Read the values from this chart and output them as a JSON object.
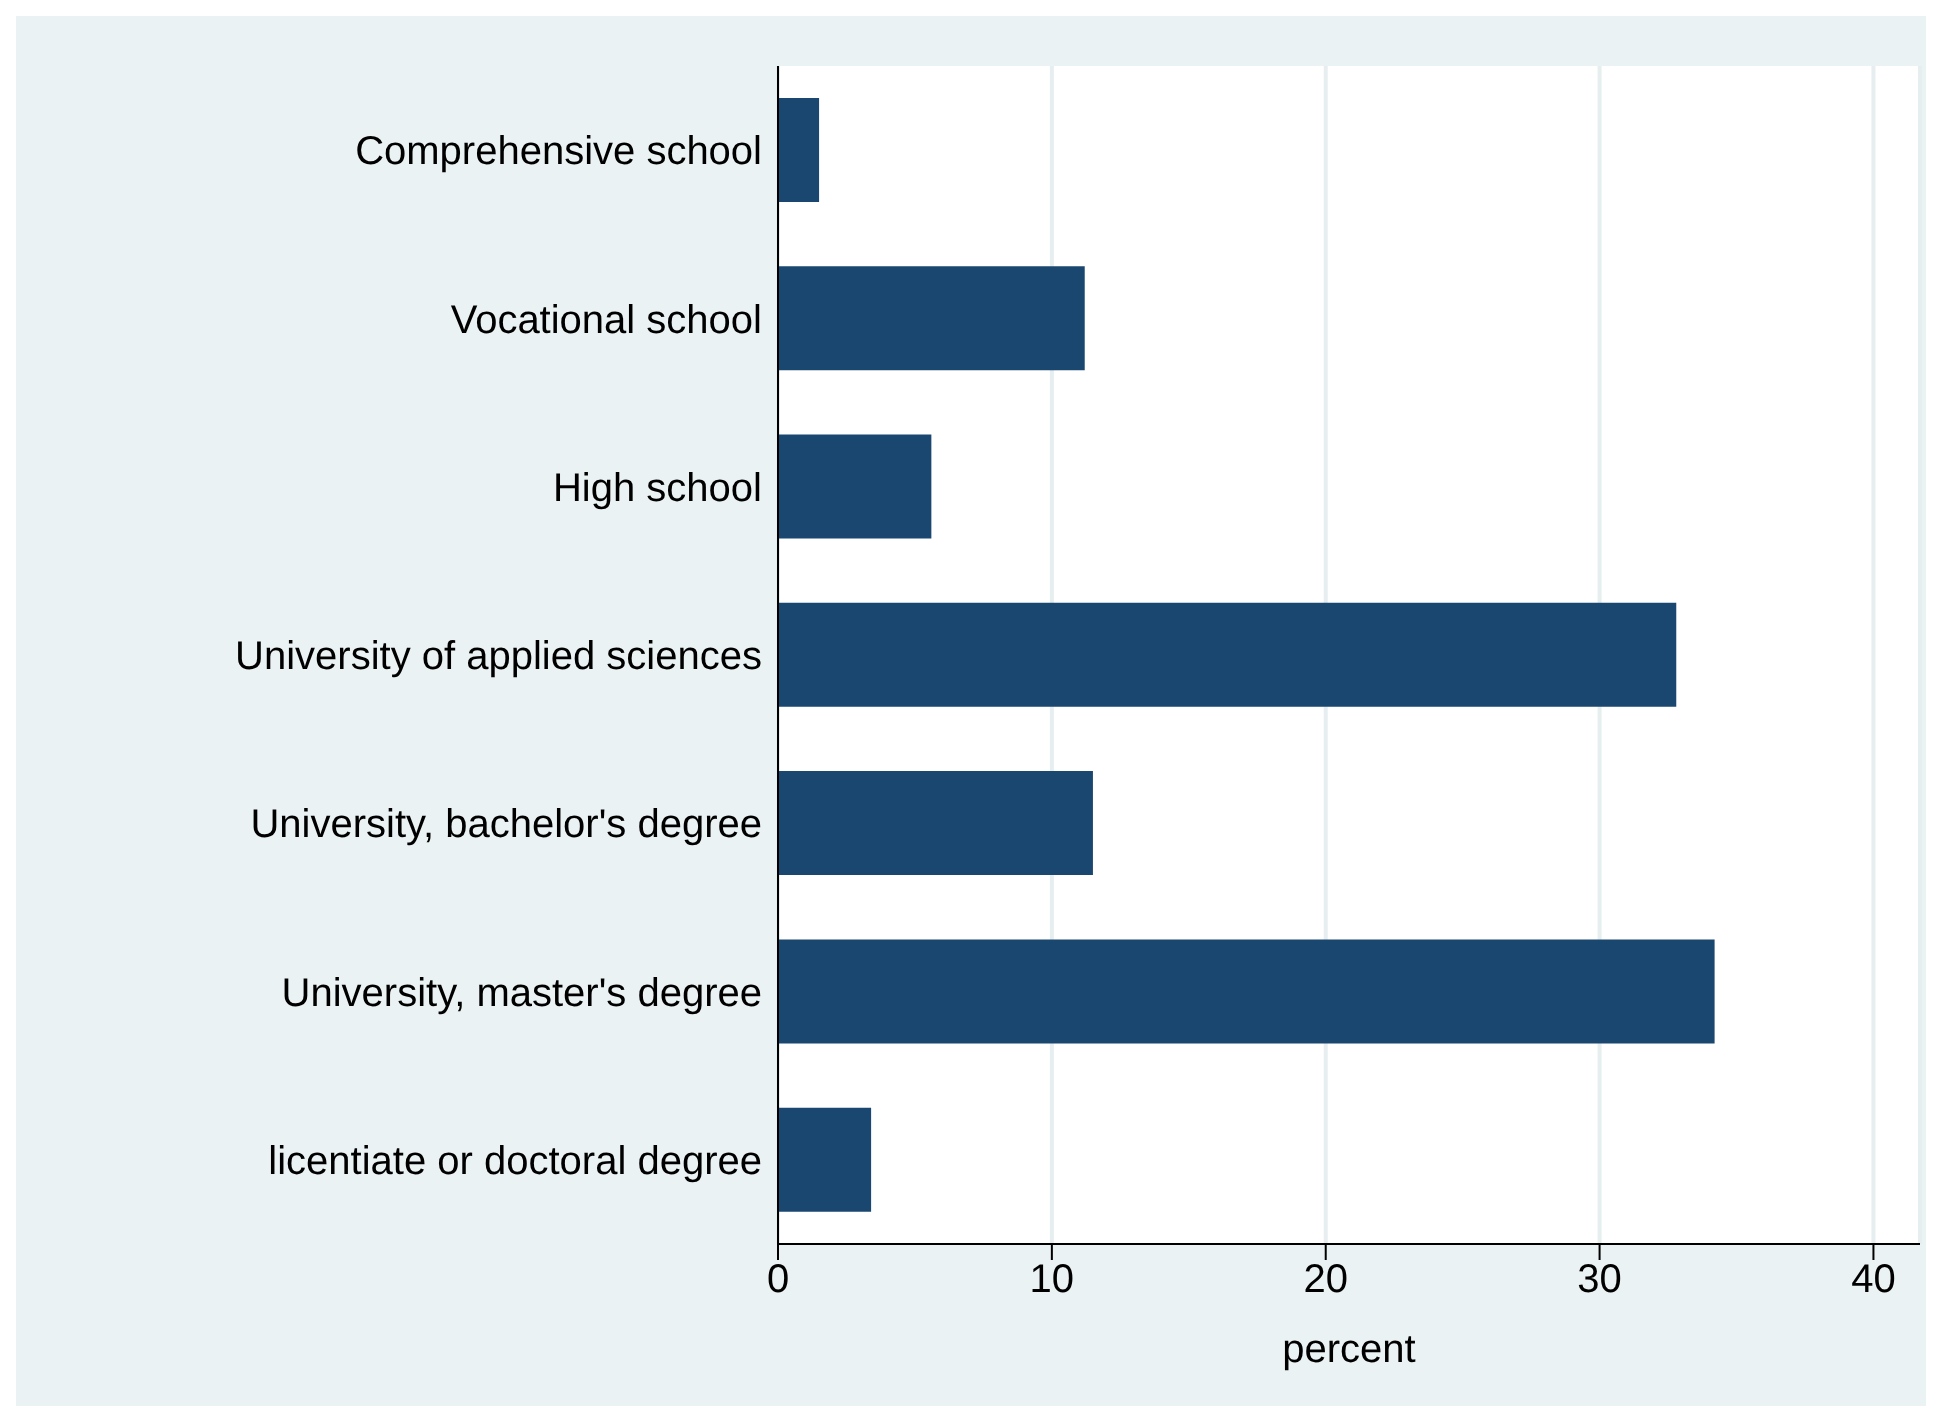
{
  "chart_data": {
    "type": "bar",
    "orientation": "horizontal",
    "xlabel": "percent",
    "categories": [
      "Comprehensive school",
      "Vocational school",
      "High school",
      "University of applied sciences",
      "University, bachelor's degree",
      "University, master's degree",
      "licentiate or doctoral degree"
    ],
    "values": [
      1.5,
      11.2,
      5.6,
      32.8,
      11.5,
      34.2,
      3.4
    ],
    "color": "#1a476f",
    "xlim": [
      0,
      41.7
    ],
    "xticks": [
      0,
      10,
      20,
      30,
      40
    ],
    "grid": "x"
  }
}
